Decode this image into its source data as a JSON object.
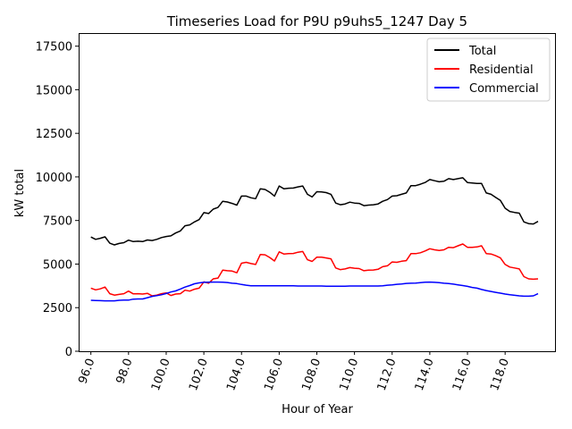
{
  "chart_data": {
    "type": "line",
    "title": "Timeseries Load for P9U p9uhs5_1247  Day 5",
    "xlabel": "Hour of Year",
    "ylabel": "kW total",
    "xlim": [
      95.35,
      120.65
    ],
    "ylim": [
      0,
      18250
    ],
    "x_ticks": [
      96,
      98,
      100,
      102,
      104,
      106,
      108,
      110,
      112,
      114,
      116,
      118
    ],
    "x_tick_labels": [
      "96.0",
      "98.0",
      "100.0",
      "102.0",
      "104.0",
      "106.0",
      "108.0",
      "110.0",
      "112.0",
      "114.0",
      "116.0",
      "118.0"
    ],
    "y_ticks": [
      0,
      2500,
      5000,
      7500,
      10000,
      12500,
      15000,
      17500
    ],
    "y_tick_labels": [
      "0",
      "2500",
      "5000",
      "7500",
      "10000",
      "12500",
      "15000",
      "17500"
    ],
    "legend_position": "top-right",
    "x": [
      96.0,
      96.25,
      96.5,
      96.75,
      97.0,
      97.25,
      97.5,
      97.75,
      98.0,
      98.25,
      98.5,
      98.75,
      99.0,
      99.25,
      99.5,
      99.75,
      100.0,
      100.25,
      100.5,
      100.75,
      101.0,
      101.25,
      101.5,
      101.75,
      102.0,
      102.25,
      102.5,
      102.75,
      103.0,
      103.25,
      103.5,
      103.75,
      104.0,
      104.25,
      104.5,
      104.75,
      105.0,
      105.25,
      105.5,
      105.75,
      106.0,
      106.25,
      106.5,
      106.75,
      107.0,
      107.25,
      107.5,
      107.75,
      108.0,
      108.25,
      108.5,
      108.75,
      109.0,
      109.25,
      109.5,
      109.75,
      110.0,
      110.25,
      110.5,
      110.75,
      111.0,
      111.25,
      111.5,
      111.75,
      112.0,
      112.25,
      112.5,
      112.75,
      113.0,
      113.25,
      113.5,
      113.75,
      114.0,
      114.25,
      114.5,
      114.75,
      115.0,
      115.25,
      115.5,
      115.75,
      116.0,
      116.25,
      116.5,
      116.75,
      117.0,
      117.25,
      117.5,
      117.75,
      118.0,
      118.25,
      118.5,
      118.75,
      119.0,
      119.25,
      119.5,
      119.75
    ],
    "series": [
      {
        "name": "Total",
        "color": "#000000",
        "values": [
          6550,
          6420,
          6480,
          6560,
          6200,
          6100,
          6180,
          6230,
          6370,
          6290,
          6310,
          6290,
          6380,
          6350,
          6420,
          6520,
          6580,
          6620,
          6780,
          6900,
          7200,
          7250,
          7420,
          7550,
          7950,
          7900,
          8150,
          8250,
          8600,
          8560,
          8480,
          8380,
          8900,
          8900,
          8800,
          8750,
          9320,
          9280,
          9120,
          8900,
          9480,
          9320,
          9350,
          9360,
          9430,
          9480,
          9000,
          8850,
          9150,
          9140,
          9100,
          9000,
          8500,
          8400,
          8450,
          8550,
          8500,
          8480,
          8350,
          8380,
          8400,
          8450,
          8600,
          8700,
          8900,
          8920,
          9000,
          9080,
          9500,
          9500,
          9580,
          9680,
          9850,
          9780,
          9720,
          9750,
          9900,
          9850,
          9900,
          9950,
          9680,
          9650,
          9620,
          9620,
          9080,
          9000,
          8820,
          8650,
          8200,
          8020,
          7960,
          7920,
          7420,
          7320,
          7300,
          7450
        ]
      },
      {
        "name": "Residential",
        "color": "#ff0000",
        "values": [
          3620,
          3520,
          3580,
          3680,
          3300,
          3220,
          3260,
          3300,
          3450,
          3290,
          3300,
          3280,
          3320,
          3180,
          3220,
          3300,
          3350,
          3200,
          3280,
          3300,
          3500,
          3450,
          3560,
          3620,
          3980,
          3900,
          4150,
          4200,
          4650,
          4620,
          4600,
          4500,
          5050,
          5100,
          5030,
          4980,
          5550,
          5530,
          5380,
          5180,
          5700,
          5580,
          5600,
          5610,
          5680,
          5720,
          5250,
          5150,
          5400,
          5400,
          5350,
          5300,
          4780,
          4680,
          4720,
          4800,
          4760,
          4740,
          4620,
          4650,
          4660,
          4700,
          4850,
          4900,
          5120,
          5100,
          5160,
          5200,
          5600,
          5600,
          5650,
          5750,
          5880,
          5820,
          5780,
          5820,
          5960,
          5940,
          6050,
          6150,
          5960,
          5960,
          5980,
          6050,
          5600,
          5580,
          5480,
          5350,
          4980,
          4830,
          4780,
          4720,
          4280,
          4150,
          4130,
          4150
        ]
      },
      {
        "name": "Commercial",
        "color": "#0000ff",
        "values": [
          2920,
          2910,
          2900,
          2890,
          2890,
          2890,
          2920,
          2930,
          2930,
          2990,
          3000,
          3000,
          3070,
          3150,
          3190,
          3240,
          3310,
          3400,
          3460,
          3570,
          3680,
          3770,
          3870,
          3920,
          3950,
          3960,
          3970,
          3970,
          3960,
          3940,
          3900,
          3880,
          3830,
          3790,
          3760,
          3760,
          3760,
          3760,
          3750,
          3750,
          3750,
          3750,
          3750,
          3750,
          3740,
          3740,
          3740,
          3740,
          3740,
          3740,
          3730,
          3730,
          3730,
          3730,
          3730,
          3740,
          3740,
          3740,
          3740,
          3740,
          3740,
          3740,
          3760,
          3790,
          3810,
          3840,
          3860,
          3890,
          3900,
          3910,
          3930,
          3960,
          3970,
          3950,
          3930,
          3900,
          3880,
          3850,
          3810,
          3770,
          3720,
          3660,
          3620,
          3540,
          3480,
          3430,
          3380,
          3330,
          3280,
          3240,
          3210,
          3180,
          3160,
          3160,
          3180,
          3300
        ]
      }
    ]
  }
}
